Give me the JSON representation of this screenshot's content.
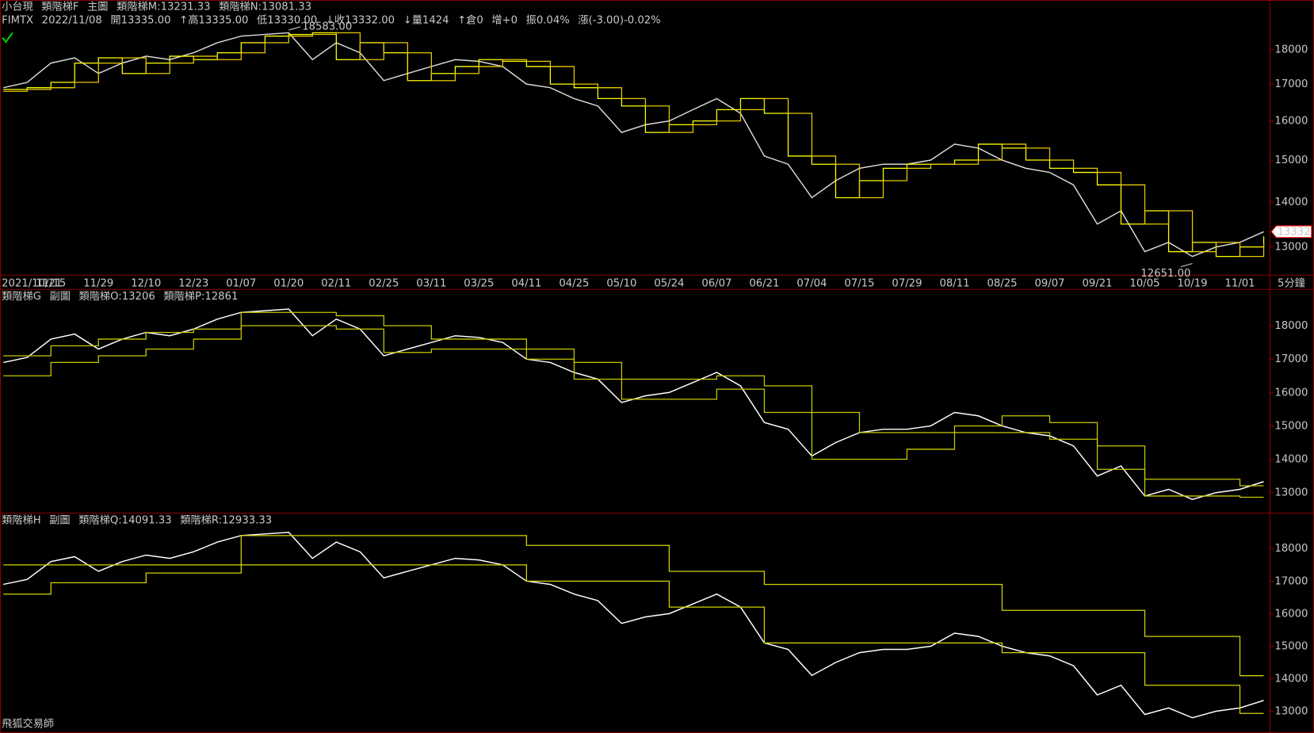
{
  "chart_data": [
    {
      "type": "line",
      "log": true,
      "title": "小台現",
      "indicator": "類階梯F",
      "pane": "主圖",
      "info": [
        "FIMTX",
        "2022/11/08",
        "開13335.00",
        "↑高13335.00",
        "低13330.00",
        "↓收13332.00",
        "↓量1424",
        "↑倉0",
        "增+0",
        "振0.04%",
        "漲(-3.00)-0.02%"
      ],
      "categories": [
        "2021/10/21",
        null,
        "11/15",
        null,
        "11/29",
        null,
        "12/10",
        null,
        "12/23",
        null,
        "01/07",
        null,
        "01/20",
        null,
        "02/11",
        null,
        "02/25",
        null,
        "03/11",
        null,
        "03/25",
        null,
        "04/11",
        null,
        "04/25",
        null,
        "05/10",
        null,
        "05/24",
        null,
        "06/07",
        null,
        "06/21",
        null,
        "07/04",
        null,
        "07/15",
        null,
        "07/29",
        null,
        "08/11",
        null,
        "08/25",
        null,
        "09/07",
        null,
        "09/21",
        null,
        "10/05",
        null,
        "10/19",
        null,
        "11/01",
        null
      ],
      "interval": "5分鐘",
      "series": [
        {
          "color": "#d8d8d8",
          "values": [
            16900,
            17050,
            17600,
            17750,
            17300,
            17600,
            17800,
            17700,
            17900,
            18200,
            18400,
            18450,
            18500,
            17700,
            18200,
            17900,
            17100,
            17300,
            17500,
            17700,
            17650,
            17500,
            17000,
            16900,
            16600,
            16400,
            15700,
            15900,
            16000,
            16300,
            16600,
            16200,
            15100,
            14900,
            14100,
            14500,
            14800,
            14900,
            14900,
            15000,
            15400,
            15300,
            15000,
            14800,
            14700,
            14400,
            13500,
            13800,
            12900,
            13100,
            12800,
            13000,
            13100,
            13332
          ]
        },
        {
          "name": "類階梯M:13231.33",
          "color": "#ffff00",
          "step": true,
          "values": [
            16850,
            16900,
            17050,
            17600,
            17750,
            17300,
            17600,
            17800,
            17700,
            17900,
            18200,
            18400,
            18450,
            18500,
            17700,
            18200,
            17900,
            17100,
            17300,
            17500,
            17700,
            17650,
            17500,
            17000,
            16900,
            16600,
            16400,
            15700,
            15900,
            16000,
            16300,
            16600,
            16200,
            15100,
            14900,
            14100,
            14500,
            14800,
            14900,
            14900,
            15000,
            15400,
            15300,
            15000,
            14800,
            14700,
            14400,
            13500,
            13800,
            12900,
            13100,
            12800,
            13000,
            13231.33
          ]
        },
        {
          "name": "類階梯N:13081.33",
          "color": "#e6c800",
          "step": true,
          "values": [
            16800,
            16850,
            16900,
            17050,
            17600,
            17750,
            17300,
            17600,
            17800,
            17700,
            17900,
            18200,
            18400,
            18450,
            18500,
            17700,
            18200,
            17900,
            17100,
            17300,
            17500,
            17700,
            17650,
            17500,
            17000,
            16900,
            16600,
            16400,
            15700,
            15900,
            16000,
            16300,
            16600,
            16200,
            15100,
            14900,
            14100,
            14500,
            14800,
            14900,
            14900,
            15000,
            15400,
            15300,
            15000,
            14800,
            14700,
            14400,
            13500,
            13800,
            12900,
            13100,
            12800,
            13081.33
          ]
        }
      ],
      "ylim": [
        12470,
        19100
      ],
      "yticks": [
        13000,
        14000,
        15000,
        16000,
        17000,
        18000
      ],
      "annotations": [
        {
          "value": 18583,
          "label": "18583.00"
        },
        {
          "value": 12651,
          "label": "12651.00"
        }
      ],
      "last_price": 13332
    },
    {
      "type": "line",
      "indicator": "類階梯G",
      "pane": "副圖",
      "series": [
        {
          "color": "#ffffff",
          "values": [
            16900,
            17050,
            17600,
            17750,
            17300,
            17600,
            17800,
            17700,
            17900,
            18200,
            18400,
            18450,
            18500,
            17700,
            18200,
            17900,
            17100,
            17300,
            17500,
            17700,
            17650,
            17500,
            17000,
            16900,
            16600,
            16400,
            15700,
            15900,
            16000,
            16300,
            16600,
            16200,
            15100,
            14900,
            14100,
            14500,
            14800,
            14900,
            14900,
            15000,
            15400,
            15300,
            15000,
            14800,
            14700,
            14400,
            13500,
            13800,
            12900,
            13100,
            12800,
            13000,
            13100,
            13332
          ]
        },
        {
          "name": "類階梯O:13206",
          "color": "#c8c800",
          "step": true,
          "values": [
            17100,
            17100,
            17400,
            17400,
            17600,
            17600,
            17800,
            17800,
            17900,
            17900,
            18400,
            18400,
            18400,
            18400,
            18300,
            18300,
            18000,
            18000,
            17600,
            17600,
            17600,
            17600,
            17300,
            17300,
            16900,
            16900,
            16400,
            16400,
            16400,
            16400,
            16500,
            16500,
            16200,
            16200,
            15400,
            15400,
            14800,
            14800,
            14800,
            14800,
            15000,
            15000,
            15300,
            15300,
            15100,
            15100,
            14400,
            14400,
            13400,
            13400,
            13400,
            13400,
            13206,
            13206
          ]
        },
        {
          "name": "類階梯P:12861",
          "color": "#c8c800",
          "step": true,
          "values": [
            16500,
            16500,
            16900,
            16900,
            17100,
            17100,
            17300,
            17300,
            17600,
            17600,
            18000,
            18000,
            18000,
            18000,
            17900,
            17900,
            17200,
            17200,
            17300,
            17300,
            17300,
            17300,
            17000,
            17000,
            16400,
            16400,
            15800,
            15800,
            15800,
            15800,
            16100,
            16100,
            15400,
            15400,
            14000,
            14000,
            14000,
            14000,
            14300,
            14300,
            14800,
            14800,
            14800,
            14800,
            14600,
            14600,
            13700,
            13700,
            12900,
            12900,
            12900,
            12900,
            12861,
            12861
          ]
        }
      ],
      "ylim": [
        12450,
        19050
      ],
      "yticks": [
        13000,
        14000,
        15000,
        16000,
        17000,
        18000
      ]
    },
    {
      "type": "line",
      "indicator": "類階梯H",
      "pane": "副圖",
      "series": [
        {
          "color": "#ffffff",
          "values": [
            16900,
            17050,
            17600,
            17750,
            17300,
            17600,
            17800,
            17700,
            17900,
            18200,
            18400,
            18450,
            18500,
            17700,
            18200,
            17900,
            17100,
            17300,
            17500,
            17700,
            17650,
            17500,
            17000,
            16900,
            16600,
            16400,
            15700,
            15900,
            16000,
            16300,
            16600,
            16200,
            15100,
            14900,
            14100,
            14500,
            14800,
            14900,
            14900,
            15000,
            15400,
            15300,
            15000,
            14800,
            14700,
            14400,
            13500,
            13800,
            12900,
            13100,
            12800,
            13000,
            13100,
            13332
          ]
        },
        {
          "name": "類階梯Q:14091.33",
          "color": "#d4d400",
          "step": true,
          "values": [
            17500,
            17500,
            17500,
            17500,
            17500,
            17500,
            17500,
            17500,
            17500,
            17500,
            18400,
            18400,
            18400,
            18400,
            18400,
            18400,
            18400,
            18400,
            18400,
            18400,
            18400,
            18400,
            18100,
            18100,
            18100,
            18100,
            18100,
            18100,
            17300,
            17300,
            17300,
            17300,
            16900,
            16900,
            16900,
            16900,
            16900,
            16900,
            16900,
            16900,
            16900,
            16900,
            16100,
            16100,
            16100,
            16100,
            16100,
            16100,
            15300,
            15300,
            15300,
            15300,
            14091.33,
            14091.33
          ]
        },
        {
          "name": "類階梯R:12933.33",
          "color": "#d4d400",
          "step": true,
          "values": [
            16600,
            16600,
            16950,
            16950,
            16950,
            16950,
            17250,
            17250,
            17250,
            17250,
            17500,
            17500,
            17500,
            17500,
            17500,
            17500,
            17500,
            17500,
            17500,
            17500,
            17500,
            17500,
            17000,
            17000,
            17000,
            17000,
            17000,
            17000,
            16200,
            16200,
            16200,
            16200,
            15100,
            15100,
            15100,
            15100,
            15100,
            15100,
            15100,
            15100,
            15100,
            15100,
            14800,
            14800,
            14800,
            14800,
            14800,
            14800,
            13800,
            13800,
            13800,
            13800,
            12933.33,
            12933.33
          ]
        }
      ],
      "ylim": [
        12460,
        19000
      ],
      "yticks": [
        13000,
        14000,
        15000,
        16000,
        17000,
        18000
      ],
      "footer": "飛狐交易師"
    }
  ]
}
